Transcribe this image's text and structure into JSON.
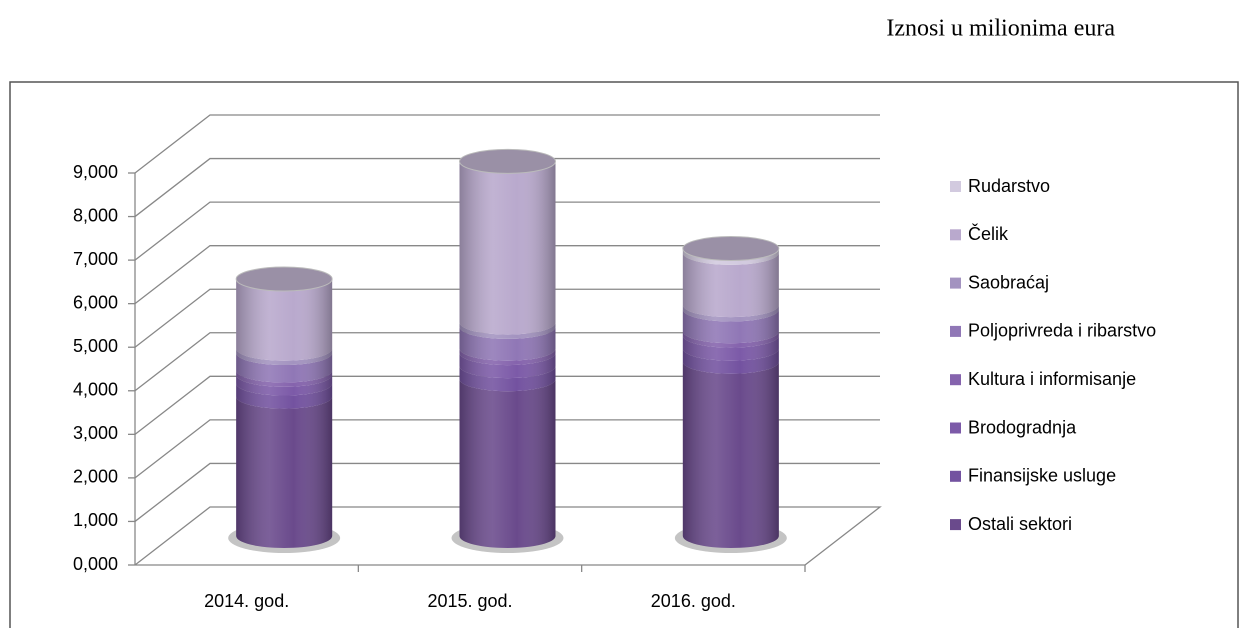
{
  "chart_data": {
    "type": "bar3d_cylinder_stacked",
    "annotation": "Iznosi u milionima eura",
    "categories": [
      "2014. god.",
      "2015. god.",
      "2016. god."
    ],
    "series": [
      {
        "name": "Ostali sektori",
        "color": "#6a4a8c",
        "values": [
          3.2,
          3.6,
          4.0
        ]
      },
      {
        "name": "Finansijske usluge",
        "color": "#7352a0",
        "values": [
          0.3,
          0.3,
          0.3
        ]
      },
      {
        "name": "Brodogradnja",
        "color": "#7c5aa8",
        "values": [
          0.2,
          0.3,
          0.3
        ]
      },
      {
        "name": "Kultura i informisanje",
        "color": "#8563ad",
        "values": [
          0.1,
          0.1,
          0.1
        ]
      },
      {
        "name": "Poljoprivreda i ribarstvo",
        "color": "#9077b6",
        "values": [
          0.4,
          0.5,
          0.5
        ]
      },
      {
        "name": "Saobraćaj",
        "color": "#a393c0",
        "values": [
          0.1,
          0.1,
          0.1
        ]
      },
      {
        "name": "Čelik",
        "color": "#b9a9cd",
        "values": [
          1.6,
          3.7,
          1.2
        ]
      },
      {
        "name": "Rudarstvo",
        "color": "#d2cadf",
        "values": [
          0.0,
          0.0,
          0.1
        ]
      }
    ],
    "ylim": [
      0,
      9
    ],
    "yticks": [
      {
        "value": 0,
        "label": "0,000"
      },
      {
        "value": 1,
        "label": "1,000"
      },
      {
        "value": 2,
        "label": "2,000"
      },
      {
        "value": 3,
        "label": "3,000"
      },
      {
        "value": 4,
        "label": "4,000"
      },
      {
        "value": 5,
        "label": "5,000"
      },
      {
        "value": 6,
        "label": "6,000"
      },
      {
        "value": 7,
        "label": "7,000"
      },
      {
        "value": 8,
        "label": "8,000"
      },
      {
        "value": 9,
        "label": "9,000"
      }
    ],
    "grid": true,
    "legend": "right"
  }
}
